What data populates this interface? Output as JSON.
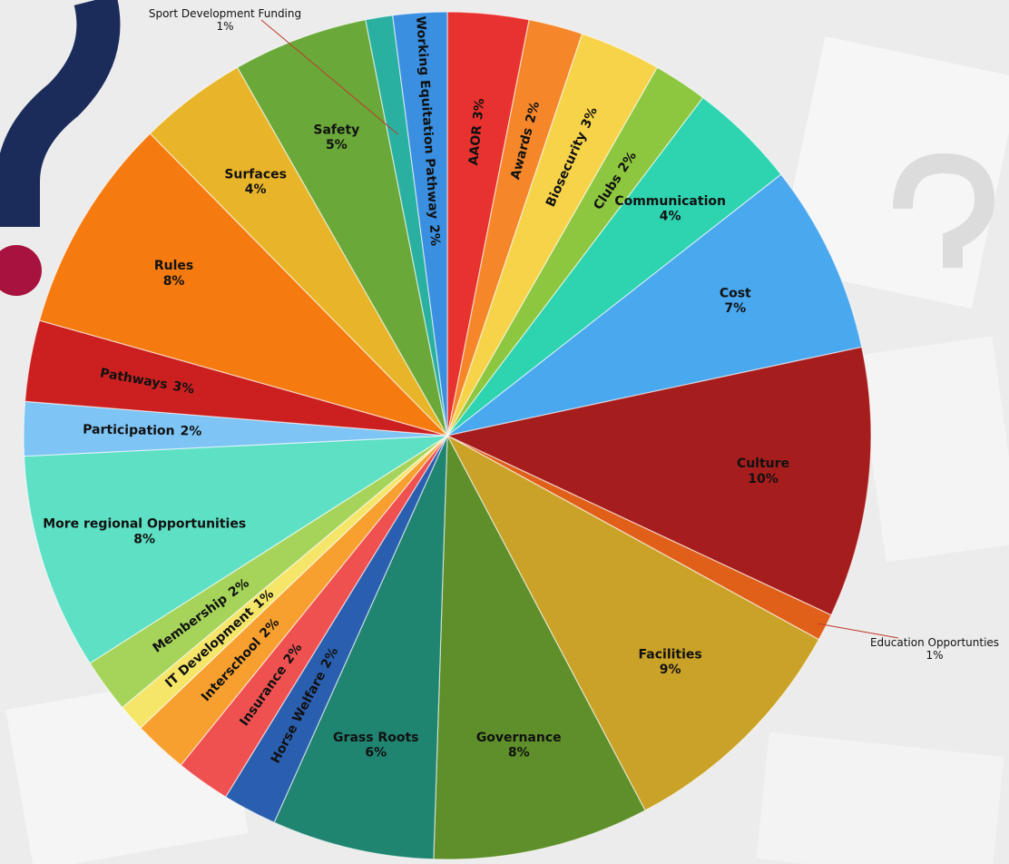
{
  "chart_data": {
    "type": "pie",
    "categories": [
      "AAOR",
      "Awards",
      "Biosecurity",
      "Clubs",
      "Communication",
      "Cost",
      "Culture",
      "Education Opportunties",
      "Facilities",
      "Governance",
      "Grass Roots",
      "Horse Welfare",
      "Insurance",
      "Interschool",
      "IT Development",
      "Membership",
      "More regional Opportunities",
      "Participation",
      "Pathways",
      "Rules",
      "Surfaces",
      "Safety",
      "Sport Development Funding",
      "Working Equitation Pathway"
    ],
    "values": [
      3,
      2,
      3,
      2,
      4,
      7,
      10,
      1,
      9,
      8,
      6,
      2,
      2,
      2,
      1,
      2,
      8,
      2,
      3,
      8,
      4,
      5,
      1,
      2
    ],
    "value_labels": [
      "3%",
      "2%",
      "3%",
      "2%",
      "4%",
      "7%",
      "10%",
      "1%",
      "9%",
      "8%",
      "6%",
      "2%",
      "2%",
      "2%",
      "1%",
      "2%",
      "8%",
      "2%",
      "3%",
      "8%",
      "4%",
      "5%",
      "1%",
      "2%"
    ],
    "colors": [
      "#e8322f",
      "#f5872a",
      "#f7d34a",
      "#8dc63f",
      "#2ed3b0",
      "#4aa8ef",
      "#a61d1d",
      "#e0601a",
      "#c9a227",
      "#5e8f2a",
      "#1f8470",
      "#2a5fb0",
      "#ef5050",
      "#f7a030",
      "#f5e66a",
      "#a6d45a",
      "#5ee0c4",
      "#7ec4f5",
      "#cc2020",
      "#f57a10",
      "#e8b52a",
      "#6aa83a",
      "#2ab0a0",
      "#3a8fe0"
    ]
  }
}
